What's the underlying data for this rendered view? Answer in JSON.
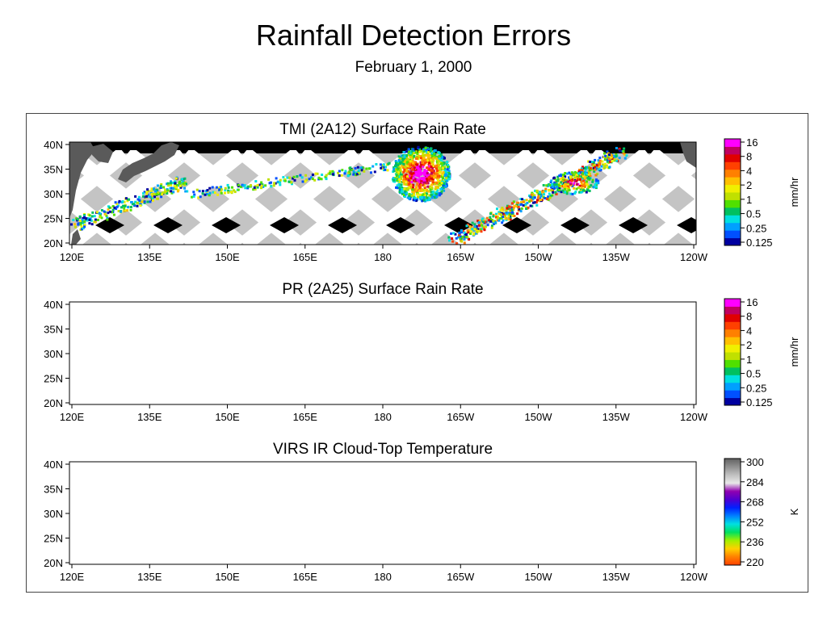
{
  "title": "Rainfall Detection Errors",
  "subtitle": "February 1, 2000",
  "lon_ticks": [
    "120E",
    "135E",
    "150E",
    "165E",
    "180",
    "165W",
    "150W",
    "135W",
    "120W"
  ],
  "lat_ticks": [
    "40N",
    "35N",
    "30N",
    "25N",
    "20N"
  ],
  "panels": [
    {
      "title": "TMI (2A12) Surface Rain Rate",
      "colorbar": {
        "unit": "mm/hr",
        "ticks": [
          "16",
          "8",
          "4",
          "2",
          "1",
          "0.5",
          "0.25",
          "0.125"
        ],
        "colors": [
          "#0000a0",
          "#0050ff",
          "#00a0ff",
          "#00e0e0",
          "#00c060",
          "#50e000",
          "#c0e000",
          "#f0f000",
          "#ffc000",
          "#ff8000",
          "#ff4000",
          "#e00000",
          "#c00060",
          "#ff00ff"
        ]
      }
    },
    {
      "title": "PR (2A25) Surface Rain Rate",
      "colorbar": {
        "unit": "mm/hr",
        "ticks": [
          "16",
          "8",
          "4",
          "2",
          "1",
          "0.5",
          "0.25",
          "0.125"
        ],
        "colors": [
          "#0000a0",
          "#0050ff",
          "#00a0ff",
          "#00e0e0",
          "#00c060",
          "#50e000",
          "#c0e000",
          "#f0f000",
          "#ffc000",
          "#ff8000",
          "#ff4000",
          "#e00000",
          "#c00060",
          "#ff00ff"
        ]
      }
    },
    {
      "title": "VIRS IR Cloud-Top Temperature",
      "colorbar": {
        "unit": "K",
        "ticks": [
          "300",
          "284",
          "268",
          "252",
          "236",
          "220"
        ],
        "colors": [
          "#ff4000",
          "#ff8000",
          "#ffd000",
          "#a0f000",
          "#00e060",
          "#00e0e0",
          "#0080ff",
          "#0020ff",
          "#5000d0",
          "#9000b0",
          "#e8e8e8",
          "#c0c0c0",
          "#909090",
          "#606060"
        ]
      }
    }
  ]
}
